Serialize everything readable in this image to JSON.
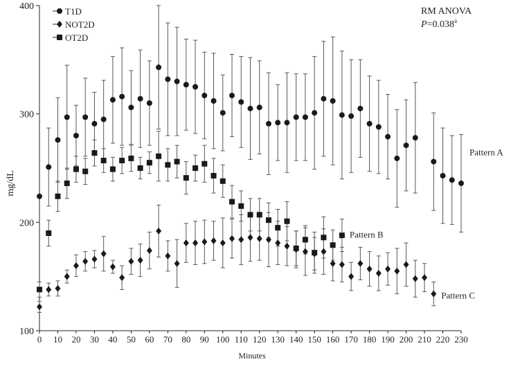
{
  "chart_data": {
    "type": "scatter",
    "xlabel": "Minutes",
    "ylabel": "mg/dL",
    "xlim": [
      0,
      230
    ],
    "ylim": [
      100,
      400
    ],
    "xticks": [
      0,
      10,
      20,
      30,
      40,
      50,
      60,
      70,
      80,
      90,
      100,
      110,
      120,
      130,
      140,
      150,
      160,
      170,
      180,
      190,
      200,
      210,
      220,
      230
    ],
    "yticks": [
      100,
      200,
      300,
      400
    ],
    "grid": false,
    "legend_position": "top-left",
    "annotation": {
      "title": "RM ANOVA",
      "p_prefix": "P",
      "p_value": "=0.038",
      "p_superscript": "a"
    },
    "pattern_labels": [
      {
        "text": "Pattern A",
        "series": "T1D",
        "x": 230,
        "y": 265
      },
      {
        "text": "Pattern B",
        "series": "OT2D",
        "x": 165,
        "y": 189
      },
      {
        "text": "Pattern C",
        "series": "NOT2D",
        "x": 215,
        "y": 133
      }
    ],
    "series": [
      {
        "name": "T1D",
        "marker": "circle",
        "points": [
          [
            0,
            224,
            null
          ],
          [
            5,
            251,
            36
          ],
          [
            10,
            276,
            39
          ],
          [
            15,
            297,
            48
          ],
          [
            20,
            280,
            28
          ],
          [
            25,
            297,
            36
          ],
          [
            30,
            291,
            29
          ],
          [
            35,
            295,
            36
          ],
          [
            40,
            313,
            40
          ],
          [
            45,
            316,
            45
          ],
          [
            50,
            306,
            34
          ],
          [
            55,
            314,
            45
          ],
          [
            60,
            310,
            39
          ],
          [
            65,
            343,
            57
          ],
          [
            70,
            332,
            52
          ],
          [
            75,
            330,
            50
          ],
          [
            80,
            327,
            42
          ],
          [
            85,
            325,
            43
          ],
          [
            90,
            317,
            40
          ],
          [
            95,
            312,
            44
          ],
          [
            100,
            301,
            35
          ],
          [
            105,
            317,
            38
          ],
          [
            110,
            311,
            42
          ],
          [
            115,
            305,
            47
          ],
          [
            120,
            306,
            43
          ],
          [
            125,
            291,
            47
          ],
          [
            130,
            292,
            35
          ],
          [
            135,
            292,
            46
          ],
          [
            140,
            297,
            40
          ],
          [
            145,
            297,
            40
          ],
          [
            150,
            301,
            52
          ],
          [
            155,
            314,
            53
          ],
          [
            160,
            312,
            59
          ],
          [
            165,
            299,
            59
          ],
          [
            170,
            298,
            52
          ],
          [
            175,
            305,
            45
          ],
          [
            180,
            291,
            44
          ],
          [
            185,
            288,
            43
          ],
          [
            190,
            279,
            39
          ],
          [
            195,
            259,
            45
          ],
          [
            200,
            271,
            42
          ],
          [
            205,
            278,
            51
          ],
          [
            215,
            256,
            45
          ],
          [
            220,
            243,
            44
          ],
          [
            225,
            239,
            41
          ],
          [
            230,
            236,
            45
          ]
        ]
      },
      {
        "name": "NOT2D",
        "marker": "diamond",
        "points": [
          [
            0,
            122,
            5
          ],
          [
            5,
            138,
            6
          ],
          [
            10,
            139,
            7
          ],
          [
            15,
            150,
            6
          ],
          [
            20,
            160,
            10
          ],
          [
            25,
            164,
            9
          ],
          [
            30,
            166,
            8
          ],
          [
            35,
            171,
            16
          ],
          [
            40,
            159,
            6
          ],
          [
            45,
            149,
            11
          ],
          [
            50,
            164,
            12
          ],
          [
            55,
            165,
            15
          ],
          [
            60,
            174,
            17
          ],
          [
            65,
            192,
            24
          ],
          [
            70,
            169,
            14
          ],
          [
            75,
            162,
            22
          ],
          [
            80,
            181,
            18
          ],
          [
            85,
            181,
            20
          ],
          [
            90,
            182,
            20
          ],
          [
            95,
            183,
            18
          ],
          [
            100,
            181,
            23
          ],
          [
            105,
            185,
            18
          ],
          [
            110,
            184,
            23
          ],
          [
            115,
            186,
            22
          ],
          [
            120,
            185,
            20
          ],
          [
            125,
            184,
            25
          ],
          [
            130,
            181,
            20
          ],
          [
            135,
            178,
            18
          ],
          [
            140,
            175,
            17
          ],
          [
            145,
            173,
            22
          ],
          [
            150,
            171,
            15
          ],
          [
            155,
            173,
            21
          ],
          [
            160,
            162,
            16
          ],
          [
            165,
            161,
            16
          ],
          [
            170,
            150,
            13
          ],
          [
            175,
            162,
            15
          ],
          [
            180,
            157,
            16
          ],
          [
            185,
            153,
            16
          ],
          [
            190,
            157,
            15
          ],
          [
            195,
            155,
            21
          ],
          [
            200,
            161,
            20
          ],
          [
            205,
            148,
            17
          ],
          [
            210,
            149,
            13
          ],
          [
            215,
            134,
            11
          ]
        ]
      },
      {
        "name": "OT2D",
        "marker": "square",
        "points": [
          [
            0,
            138,
            7
          ],
          [
            5,
            190,
            12
          ],
          [
            10,
            224,
            14
          ],
          [
            15,
            236,
            14
          ],
          [
            20,
            249,
            12
          ],
          [
            25,
            247,
            12
          ],
          [
            30,
            264,
            12
          ],
          [
            35,
            257,
            11
          ],
          [
            40,
            249,
            11
          ],
          [
            45,
            257,
            12
          ],
          [
            50,
            259,
            12
          ],
          [
            55,
            250,
            10
          ],
          [
            60,
            255,
            10
          ],
          [
            65,
            261,
            23
          ],
          [
            70,
            253,
            15
          ],
          [
            75,
            256,
            15
          ],
          [
            80,
            241,
            15
          ],
          [
            85,
            250,
            12
          ],
          [
            90,
            254,
            17
          ],
          [
            95,
            243,
            16
          ],
          [
            100,
            238,
            15
          ],
          [
            105,
            219,
            15
          ],
          [
            110,
            215,
            14
          ],
          [
            115,
            207,
            15
          ],
          [
            120,
            207,
            15
          ],
          [
            125,
            202,
            16
          ],
          [
            130,
            195,
            17
          ],
          [
            135,
            201,
            18
          ],
          [
            140,
            176,
            16
          ],
          [
            145,
            184,
            13
          ],
          [
            150,
            172,
            19
          ],
          [
            155,
            186,
            19
          ],
          [
            160,
            179,
            14
          ],
          [
            165,
            188,
            15
          ]
        ]
      }
    ]
  }
}
